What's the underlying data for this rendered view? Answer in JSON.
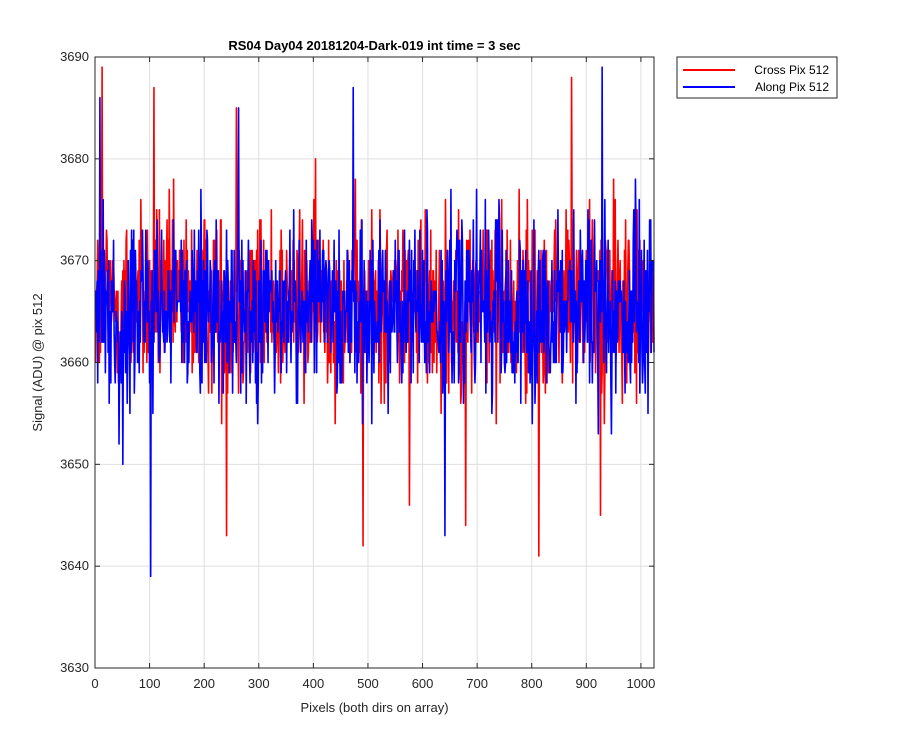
{
  "chart_data": {
    "type": "line",
    "title": "RS04 Day04 20181204-Dark-019 int time = 3 sec",
    "xlabel": "Pixels (both dirs on array)",
    "ylabel": "Signal (ADU) @ pix 512",
    "xlim": [
      0,
      1024
    ],
    "ylim": [
      3630,
      3690
    ],
    "xticks": [
      0,
      100,
      200,
      300,
      400,
      500,
      600,
      700,
      800,
      900,
      1000
    ],
    "yticks": [
      3630,
      3640,
      3650,
      3660,
      3670,
      3680,
      3690
    ],
    "grid": true,
    "legend_position": "outside-top-right",
    "series": [
      {
        "name": "Cross Pix 512",
        "color": "#ff0000",
        "mean": 3666,
        "spread": 4.5,
        "seed": 12345,
        "n_points": 1024,
        "extremes": [
          {
            "x": 12,
            "y": 3689
          },
          {
            "x": 107,
            "y": 3687
          },
          {
            "x": 240,
            "y": 3643
          },
          {
            "x": 258,
            "y": 3685
          },
          {
            "x": 490,
            "y": 3642
          },
          {
            "x": 575,
            "y": 3646
          },
          {
            "x": 678,
            "y": 3644
          },
          {
            "x": 812,
            "y": 3641
          },
          {
            "x": 872,
            "y": 3688
          },
          {
            "x": 925,
            "y": 3645
          }
        ]
      },
      {
        "name": "Along Pix 512",
        "color": "#0000ff",
        "mean": 3665,
        "spread": 4.5,
        "seed": 67890,
        "n_points": 1024,
        "extremes": [
          {
            "x": 8,
            "y": 3686
          },
          {
            "x": 101,
            "y": 3639
          },
          {
            "x": 262,
            "y": 3685
          },
          {
            "x": 472,
            "y": 3687
          },
          {
            "x": 640,
            "y": 3643
          },
          {
            "x": 928,
            "y": 3689
          },
          {
            "x": 50,
            "y": 3650
          }
        ]
      }
    ]
  }
}
